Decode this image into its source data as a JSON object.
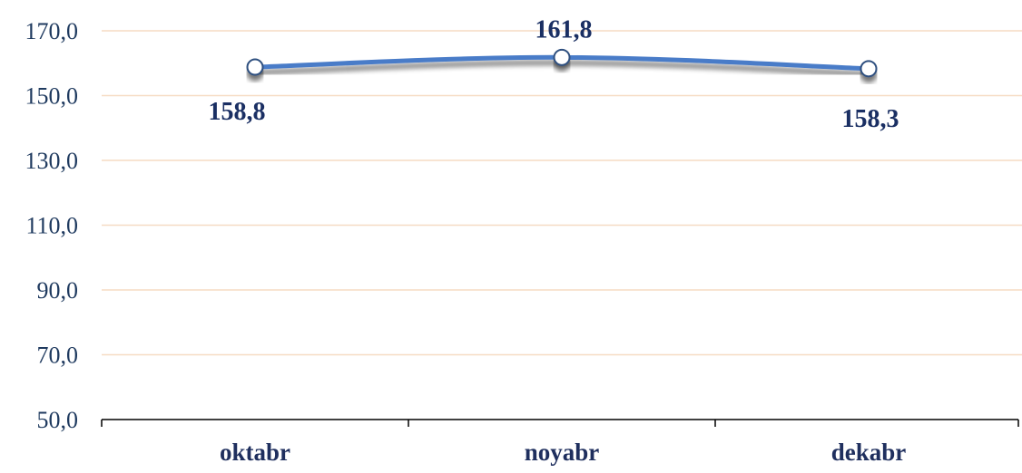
{
  "chart_data": {
    "type": "line",
    "categories": [
      "oktabr",
      "noyabr",
      "dekabr"
    ],
    "series": [
      {
        "values": [
          158.8,
          161.8,
          158.3
        ],
        "data_labels": [
          "158,8",
          "161,8",
          "158,3"
        ]
      }
    ],
    "ylim": [
      50,
      170
    ],
    "y_ticks": [
      50,
      70,
      90,
      110,
      130,
      150,
      170
    ],
    "y_tick_labels": [
      "50,0",
      "70,0",
      "90,0",
      "110,0",
      "130,0",
      "150,0",
      "170,0"
    ],
    "title": "",
    "xlabel": "",
    "ylabel": "",
    "grid": true,
    "legend": "none",
    "colors": {
      "line": "#4a7bc8",
      "marker_fill": "#ffffff",
      "marker_stroke": "#2f4f7f",
      "grid": "#f6dcc4",
      "data_label": "#1a2f63",
      "axis_label": "#1f3a5f"
    }
  }
}
